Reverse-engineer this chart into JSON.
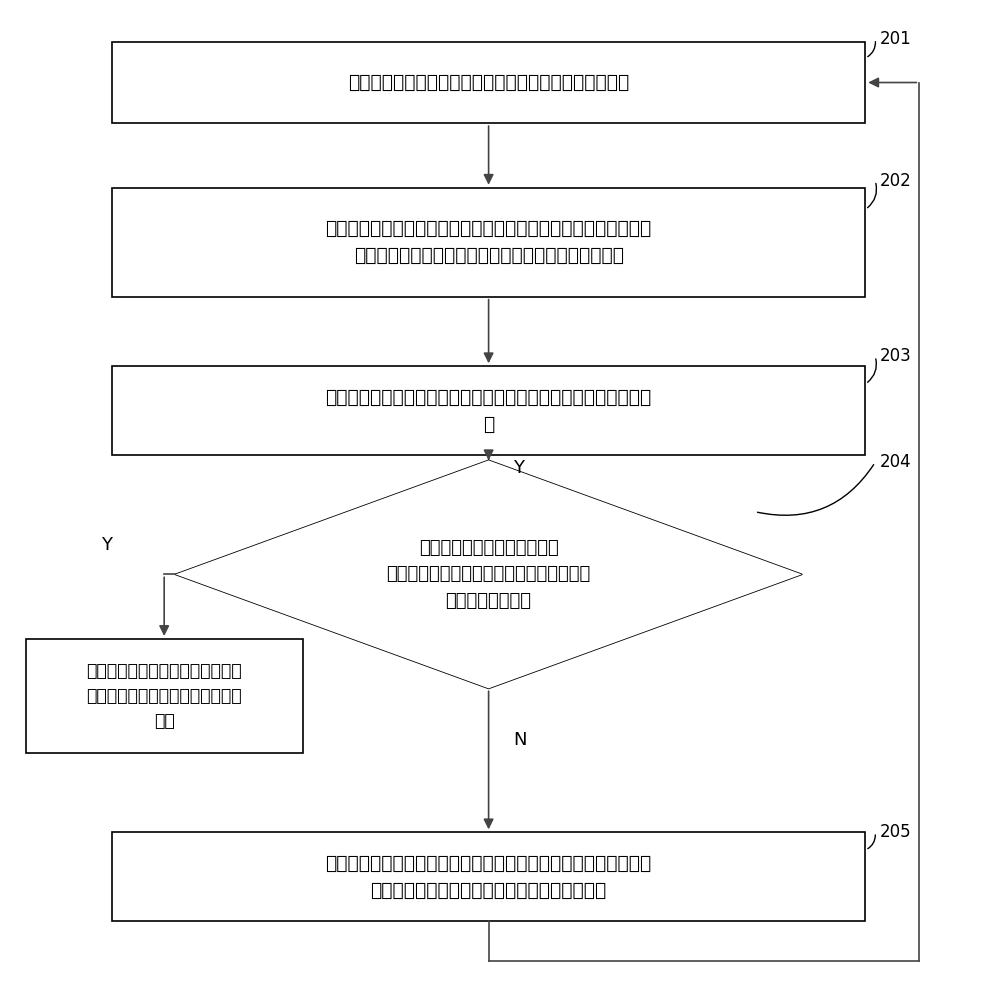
{
  "bg_color": "#ffffff",
  "border_color": "#000000",
  "arrow_color": "#444444",
  "text_color": "#000000",
  "box201_text": "将训练样本集中的样本图像输入待训练的全卷积神经网络",
  "box202_text": "经过待训练的全卷积神经网络的卷积计算，对样本图像进行感兴趣\n区域勾画，获得勾画出至少一个感兴趣区域的勾靶图像",
  "box203_text": "将勾靶图像中的感兴趣区域与样本图像中已知的感兴趣区域进行比\n对",
  "diamond204_text": "判断勾靶图像中的感兴趣区域\n与样本图像中已知的感兴趣区域之间的误差\n是否小于预设阈值",
  "box205_text": "根据比对结果对待训练的全卷积神经网络进行参数调整，将调整后\n的全卷积神经网络作为待训练的全卷积神经网络",
  "boxend_text": "输出调整后的全卷积神经网络作为\n训练完成的全卷积神经网络，结束\n训练",
  "label201": "201",
  "label202": "202",
  "label203": "203",
  "label204": "204",
  "label205": "205",
  "figure_width": 9.87,
  "figure_height": 10.0,
  "dpi": 100
}
